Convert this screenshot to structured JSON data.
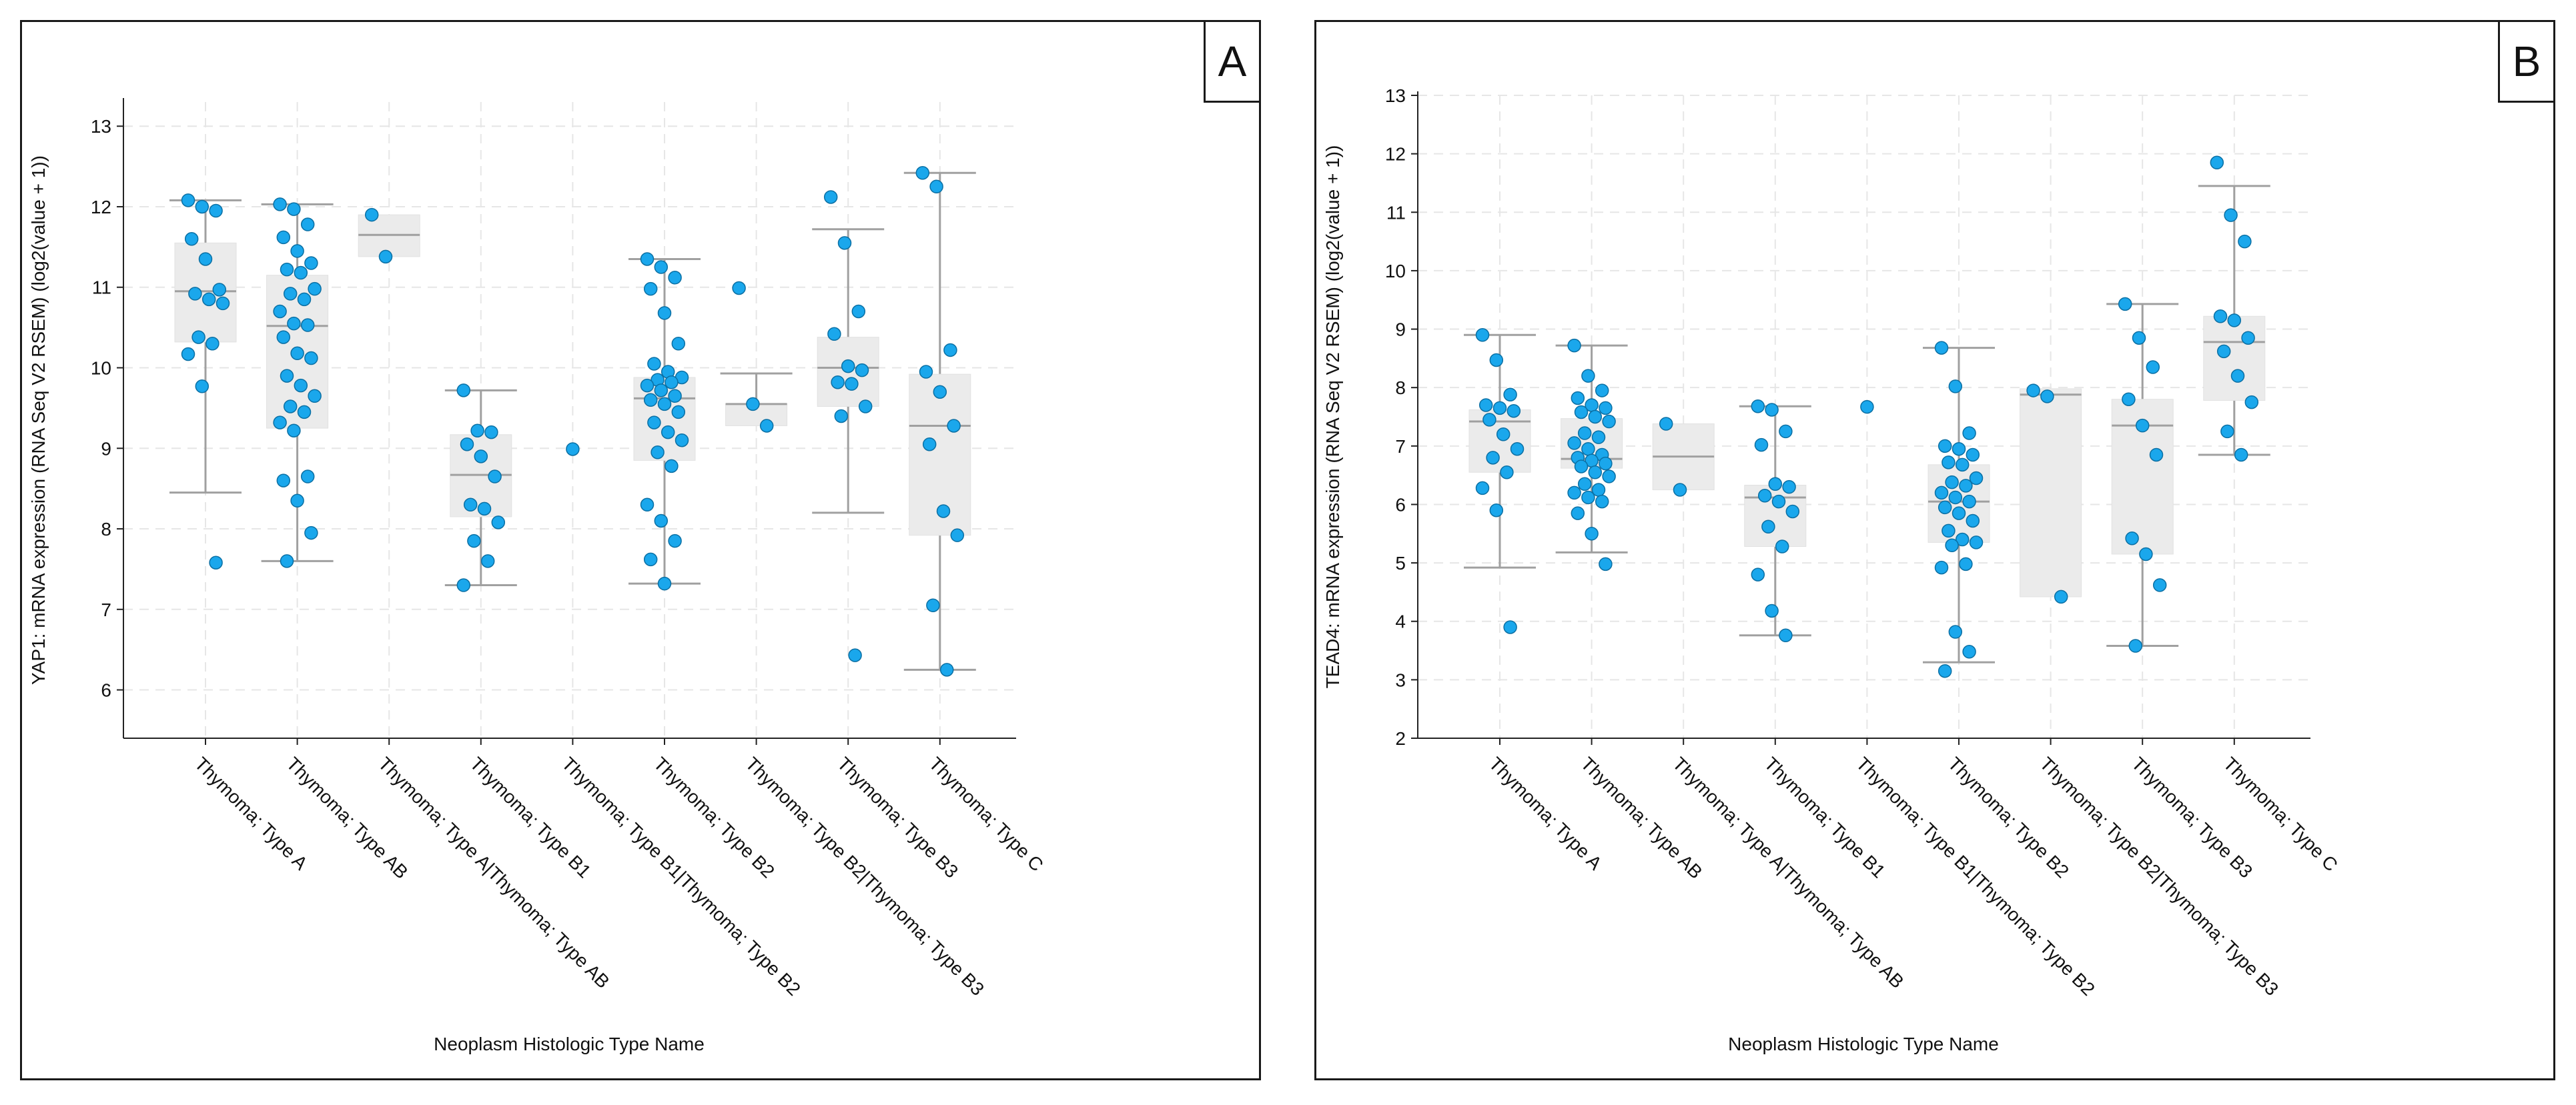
{
  "colors": {
    "point": "#1aa7ec",
    "point_stroke": "#0b6fa3",
    "box": "#ebebeb",
    "whisker": "#a0a0a0",
    "grid": "#e6e6e6",
    "axis": "#222222"
  },
  "chart_data": [
    {
      "panel_label": "A",
      "type": "box",
      "title": "",
      "xlabel": "Neoplasm Histologic Type Name",
      "ylabel": "YAP1: mRNA expression (RNA Seq V2 RSEM) (log2(value + 1))",
      "ylim": [
        5.4,
        13.3
      ],
      "yticks": [
        6,
        7,
        8,
        9,
        10,
        11,
        12,
        13
      ],
      "grid": true,
      "categories": [
        "Thymoma; Type A",
        "Thymoma; Type AB",
        "Thymoma; Type A|Thymoma; Type AB",
        "Thymoma; Type B1",
        "Thymoma; Type B1|Thymoma; Type B2",
        "Thymoma; Type B2",
        "Thymoma; Type B2|Thymoma; Type B3",
        "Thymoma; Type B3",
        "Thymoma; Type C"
      ],
      "boxes": [
        {
          "q1": 10.32,
          "median": 10.95,
          "q3": 11.55,
          "whisker_low": 8.45,
          "whisker_high": 12.08
        },
        {
          "q1": 9.25,
          "median": 10.52,
          "q3": 11.15,
          "whisker_low": 7.6,
          "whisker_high": 12.03
        },
        {
          "q1": 11.38,
          "median": 11.65,
          "q3": 11.9,
          "whisker_low": null,
          "whisker_high": null
        },
        {
          "q1": 8.15,
          "median": 8.67,
          "q3": 9.17,
          "whisker_low": 7.3,
          "whisker_high": 9.72
        },
        null,
        {
          "q1": 8.85,
          "median": 9.62,
          "q3": 9.88,
          "whisker_low": 7.32,
          "whisker_high": 11.35
        },
        {
          "q1": 9.28,
          "median": 9.55,
          "q3": 9.55,
          "whisker_low": null,
          "whisker_high": 9.93
        },
        {
          "q1": 9.52,
          "median": 10.0,
          "q3": 10.38,
          "whisker_low": 8.2,
          "whisker_high": 11.72
        },
        {
          "q1": 7.92,
          "median": 9.28,
          "q3": 9.92,
          "whisker_low": 6.25,
          "whisker_high": 12.42
        }
      ],
      "points": [
        [
          12.08,
          12.0,
          11.95,
          11.6,
          11.35,
          10.97,
          10.92,
          10.85,
          10.8,
          10.38,
          10.3,
          10.17,
          9.77,
          7.58
        ],
        [
          12.03,
          11.97,
          11.78,
          11.62,
          11.45,
          11.3,
          11.22,
          11.18,
          10.98,
          10.92,
          10.85,
          10.7,
          10.55,
          10.53,
          10.38,
          10.18,
          10.12,
          9.9,
          9.78,
          9.65,
          9.52,
          9.45,
          9.32,
          9.22,
          8.65,
          8.6,
          8.35,
          7.95,
          7.6
        ],
        [
          11.9,
          11.38
        ],
        [
          9.72,
          9.22,
          9.2,
          9.05,
          8.9,
          8.65,
          8.3,
          8.25,
          8.08,
          7.85,
          7.6,
          7.3
        ],
        [
          8.99
        ],
        [
          11.35,
          11.25,
          11.12,
          10.98,
          10.68,
          10.3,
          10.05,
          9.95,
          9.88,
          9.85,
          9.82,
          9.78,
          9.72,
          9.65,
          9.6,
          9.55,
          9.45,
          9.32,
          9.2,
          9.1,
          8.95,
          8.78,
          8.3,
          8.1,
          7.85,
          7.62,
          7.32
        ],
        [
          10.99,
          9.55,
          9.28
        ],
        [
          12.12,
          11.55,
          10.7,
          10.42,
          10.02,
          9.97,
          9.82,
          9.8,
          9.52,
          9.4,
          6.43
        ],
        [
          12.42,
          12.25,
          10.22,
          9.95,
          9.7,
          9.28,
          9.05,
          8.22,
          7.92,
          7.05,
          6.25
        ]
      ]
    },
    {
      "panel_label": "B",
      "type": "box",
      "title": "",
      "xlabel": "Neoplasm Histologic Type Name",
      "ylabel": "TEAD4: mRNA expression (RNA Seq V2 RSEM) (log2(value + 1))",
      "ylim": [
        2,
        13
      ],
      "yticks": [
        2,
        3,
        4,
        5,
        6,
        7,
        8,
        9,
        10,
        11,
        12,
        13
      ],
      "grid": true,
      "categories": [
        "Thymoma; Type A",
        "Thymoma; Type AB",
        "Thymoma; Type A|Thymoma; Type AB",
        "Thymoma; Type B1",
        "Thymoma; Type B1|Thymoma; Type B2",
        "Thymoma; Type B2",
        "Thymoma; Type B2|Thymoma; Type B3",
        "Thymoma; Type B3",
        "Thymoma; Type C"
      ],
      "boxes": [
        {
          "q1": 6.55,
          "median": 7.42,
          "q3": 7.62,
          "whisker_low": 4.92,
          "whisker_high": 8.9
        },
        {
          "q1": 6.62,
          "median": 6.78,
          "q3": 7.47,
          "whisker_low": 5.18,
          "whisker_high": 8.72
        },
        {
          "q1": 6.25,
          "median": 6.82,
          "q3": 7.38,
          "whisker_low": null,
          "whisker_high": null
        },
        {
          "q1": 5.28,
          "median": 6.12,
          "q3": 6.33,
          "whisker_low": 3.76,
          "whisker_high": 7.68
        },
        null,
        {
          "q1": 5.35,
          "median": 6.05,
          "q3": 6.68,
          "whisker_low": 3.3,
          "whisker_high": 8.68
        },
        {
          "q1": 4.42,
          "median": 7.88,
          "q3": 7.98,
          "whisker_low": null,
          "whisker_high": null
        },
        {
          "q1": 5.15,
          "median": 7.35,
          "q3": 7.8,
          "whisker_low": 3.58,
          "whisker_high": 9.43
        },
        {
          "q1": 7.78,
          "median": 8.78,
          "q3": 9.22,
          "whisker_low": 6.85,
          "whisker_high": 11.45
        }
      ],
      "points": [
        [
          8.9,
          8.47,
          7.88,
          7.7,
          7.65,
          7.6,
          7.45,
          7.2,
          6.95,
          6.8,
          6.55,
          6.28,
          5.9,
          3.9
        ],
        [
          8.72,
          8.2,
          7.95,
          7.82,
          7.7,
          7.65,
          7.58,
          7.5,
          7.42,
          7.22,
          7.15,
          7.05,
          6.95,
          6.85,
          6.8,
          6.75,
          6.7,
          6.65,
          6.55,
          6.48,
          6.35,
          6.25,
          6.2,
          6.12,
          6.05,
          5.85,
          5.5,
          4.98
        ],
        [
          7.38,
          6.25
        ],
        [
          7.68,
          7.62,
          7.25,
          7.02,
          6.35,
          6.3,
          6.15,
          6.05,
          5.88,
          5.62,
          5.28,
          4.8,
          4.18,
          3.76
        ],
        [
          7.67
        ],
        [
          8.68,
          8.02,
          7.22,
          7.0,
          6.95,
          6.85,
          6.72,
          6.68,
          6.45,
          6.38,
          6.32,
          6.2,
          6.12,
          6.05,
          5.95,
          5.85,
          5.72,
          5.55,
          5.4,
          5.35,
          5.3,
          4.98,
          4.92,
          3.82,
          3.48,
          3.15
        ],
        [
          7.95,
          7.85,
          4.42
        ],
        [
          9.43,
          8.85,
          8.35,
          7.8,
          7.35,
          6.85,
          5.42,
          5.15,
          4.62,
          3.58
        ],
        [
          11.85,
          10.95,
          10.5,
          9.22,
          9.15,
          8.85,
          8.62,
          8.2,
          7.75,
          7.25,
          6.85
        ]
      ]
    }
  ]
}
